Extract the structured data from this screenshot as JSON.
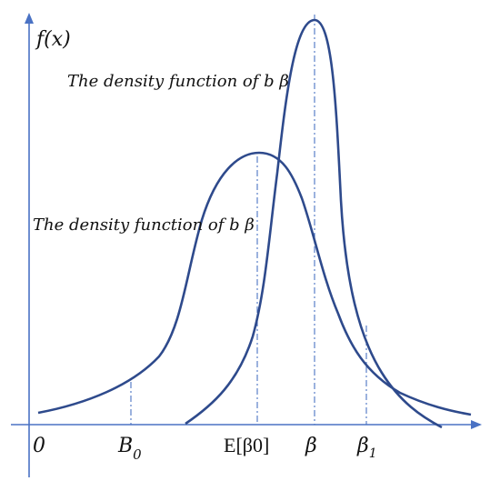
{
  "diagram": {
    "y_axis_label": "f(x)",
    "curve_labels": {
      "upper": "The density function of b β",
      "lower": "The density function of b β"
    },
    "x_ticks": {
      "origin": "0",
      "b0_main": "B",
      "b0_sub": "0",
      "expectation": "E[β0]",
      "beta": "β",
      "beta1_main": "β",
      "beta1_sub": "1"
    },
    "colors": {
      "axis": "#4a72c4",
      "curve": "#2e4a8c",
      "guide": "#4a72c4",
      "text": "#111111"
    }
  }
}
